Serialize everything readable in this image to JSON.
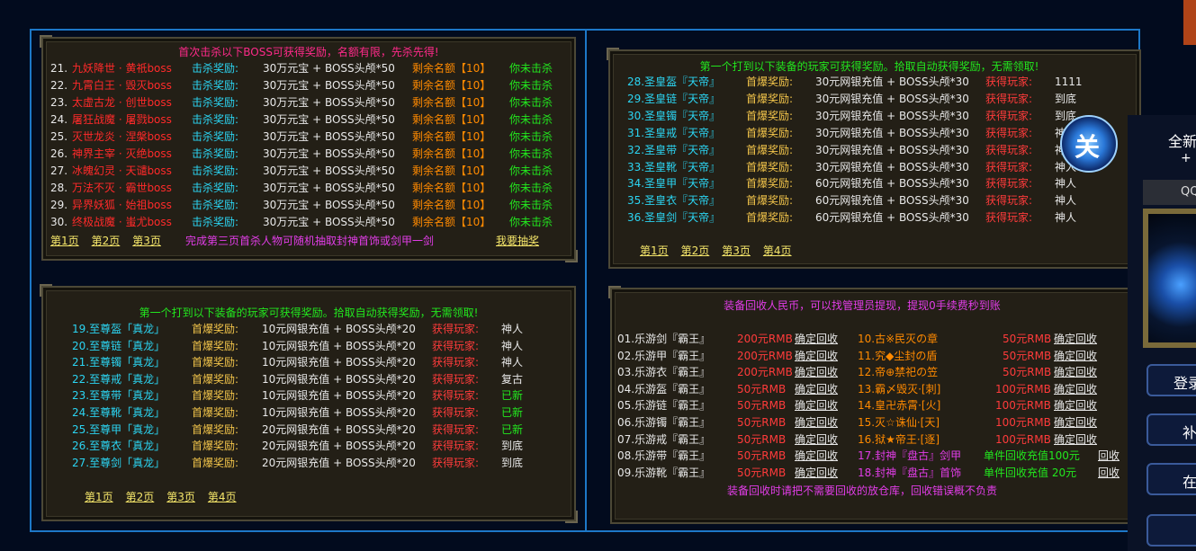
{
  "p1": {
    "title": "首次击杀以下BOSS可获得奖励，名额有限，先杀先得!",
    "rows": [
      {
        "no": "21.",
        "boss": "九妖降世 · 黄祇boss",
        "lbl": "击杀奖励:",
        "rw": "30万元宝 + BOSS头颅*50",
        "rem": "剩余名额【10】",
        "st": "你未击杀"
      },
      {
        "no": "22.",
        "boss": "九霄白王 · 毁灭boss",
        "lbl": "击杀奖励:",
        "rw": "30万元宝 + BOSS头颅*50",
        "rem": "剩余名额【10】",
        "st": "你未击杀"
      },
      {
        "no": "23.",
        "boss": "太虚古龙 · 创世boss",
        "lbl": "击杀奖励:",
        "rw": "30万元宝 + BOSS头颅*50",
        "rem": "剩余名额【10】",
        "st": "你未击杀"
      },
      {
        "no": "24.",
        "boss": "屠狂战魔 · 屠戮boss",
        "lbl": "击杀奖励:",
        "rw": "30万元宝 + BOSS头颅*50",
        "rem": "剩余名额【10】",
        "st": "你未击杀"
      },
      {
        "no": "25.",
        "boss": "灭世龙炎 · 涅槃boss",
        "lbl": "击杀奖励:",
        "rw": "30万元宝 + BOSS头颅*50",
        "rem": "剩余名额【10】",
        "st": "你未击杀"
      },
      {
        "no": "26.",
        "boss": "神界主宰 · 灭绝boss",
        "lbl": "击杀奖励:",
        "rw": "30万元宝 + BOSS头颅*50",
        "rem": "剩余名额【10】",
        "st": "你未击杀"
      },
      {
        "no": "27.",
        "boss": "冰魄幻灵 · 天谴boss",
        "lbl": "击杀奖励:",
        "rw": "30万元宝 + BOSS头颅*50",
        "rem": "剩余名额【10】",
        "st": "你未击杀"
      },
      {
        "no": "28.",
        "boss": "万法不灭 · 霸世boss",
        "lbl": "击杀奖励:",
        "rw": "30万元宝 + BOSS头颅*50",
        "rem": "剩余名额【10】",
        "st": "你未击杀"
      },
      {
        "no": "29.",
        "boss": "异界妖狐 · 始祖boss",
        "lbl": "击杀奖励:",
        "rw": "30万元宝 + BOSS头颅*50",
        "rem": "剩余名额【10】",
        "st": "你未击杀"
      },
      {
        "no": "30.",
        "boss": "终极战魔 · 蚩尤boss",
        "lbl": "击杀奖励:",
        "rw": "30万元宝 + BOSS头颅*50",
        "rem": "剩余名额【10】",
        "st": "你未击杀"
      }
    ],
    "pages": [
      "第1页",
      "第2页",
      "第3页"
    ],
    "note": "完成第三页首杀人物可随机抽取封神首饰或剑甲一剑",
    "draw": "我要抽奖"
  },
  "p2": {
    "title": "第一个打到以下装备的玩家可获得奖励。拾取自动获得奖励，无需领取!",
    "rows": [
      {
        "item": "19.至尊盔「真龙」",
        "lbl": "首爆奖励:",
        "rw": "10元网银充值 + BOSS头颅*20",
        "gp": "获得玩家:",
        "pl": "神人",
        "plc": "white"
      },
      {
        "item": "20.至尊链「真龙」",
        "lbl": "首爆奖励:",
        "rw": "10元网银充值 + BOSS头颅*20",
        "gp": "获得玩家:",
        "pl": "神人",
        "plc": "white"
      },
      {
        "item": "21.至尊镯「真龙」",
        "lbl": "首爆奖励:",
        "rw": "10元网银充值 + BOSS头颅*20",
        "gp": "获得玩家:",
        "pl": "神人",
        "plc": "white"
      },
      {
        "item": "22.至尊戒「真龙」",
        "lbl": "首爆奖励:",
        "rw": "10元网银充值 + BOSS头颅*20",
        "gp": "获得玩家:",
        "pl": "复古",
        "plc": "white"
      },
      {
        "item": "23.至尊带「真龙」",
        "lbl": "首爆奖励:",
        "rw": "10元网银充值 + BOSS头颅*20",
        "gp": "获得玩家:",
        "pl": "已新",
        "plc": "green"
      },
      {
        "item": "24.至尊靴「真龙」",
        "lbl": "首爆奖励:",
        "rw": "10元网银充值 + BOSS头颅*20",
        "gp": "获得玩家:",
        "pl": "已新",
        "plc": "green"
      },
      {
        "item": "25.至尊甲「真龙」",
        "lbl": "首爆奖励:",
        "rw": "20元网银充值 + BOSS头颅*20",
        "gp": "获得玩家:",
        "pl": "已新",
        "plc": "green"
      },
      {
        "item": "26.至尊衣「真龙」",
        "lbl": "首爆奖励:",
        "rw": "20元网银充值 + BOSS头颅*20",
        "gp": "获得玩家:",
        "pl": "到底",
        "plc": "white"
      },
      {
        "item": "27.至尊剑「真龙」",
        "lbl": "首爆奖励:",
        "rw": "20元网银充值 + BOSS头颅*20",
        "gp": "获得玩家:",
        "pl": "到底",
        "plc": "white"
      }
    ],
    "pages": [
      "第1页",
      "第2页",
      "第3页",
      "第4页"
    ]
  },
  "p3": {
    "title": "第一个打到以下装备的玩家可获得奖励。拾取自动获得奖励，无需领取!",
    "rows": [
      {
        "item": "28.圣皇盔『天帝』",
        "lbl": "首爆奖励:",
        "rw": "30元网银充值 + BOSS头颅*30",
        "gp": "获得玩家:",
        "pl": "1111"
      },
      {
        "item": "29.圣皇链『天帝』",
        "lbl": "首爆奖励:",
        "rw": "30元网银充值 + BOSS头颅*30",
        "gp": "获得玩家:",
        "pl": "到底"
      },
      {
        "item": "30.圣皇镯『天帝』",
        "lbl": "首爆奖励:",
        "rw": "30元网银充值 + BOSS头颅*30",
        "gp": "获得玩家:",
        "pl": "到底"
      },
      {
        "item": "31.圣皇戒『天帝』",
        "lbl": "首爆奖励:",
        "rw": "30元网银充值 + BOSS头颅*30",
        "gp": "获得玩家:",
        "pl": "神"
      },
      {
        "item": "32.圣皇带『天帝』",
        "lbl": "首爆奖励:",
        "rw": "30元网银充值 + BOSS头颅*30",
        "gp": "获得玩家:",
        "pl": "神人"
      },
      {
        "item": "33.圣皇靴『天帝』",
        "lbl": "首爆奖励:",
        "rw": "30元网银充值 + BOSS头颅*30",
        "gp": "获得玩家:",
        "pl": "神人"
      },
      {
        "item": "34.圣皇甲『天帝』",
        "lbl": "首爆奖励:",
        "rw": "60元网银充值 + BOSS头颅*30",
        "gp": "获得玩家:",
        "pl": "神人"
      },
      {
        "item": "35.圣皇衣『天帝』",
        "lbl": "首爆奖励:",
        "rw": "60元网银充值 + BOSS头颅*30",
        "gp": "获得玩家:",
        "pl": "神人"
      },
      {
        "item": "36.圣皇剑『天帝』",
        "lbl": "首爆奖励:",
        "rw": "60元网银充值 + BOSS头颅*30",
        "gp": "获得玩家:",
        "pl": "神人"
      }
    ],
    "pages": [
      "第1页",
      "第2页",
      "第3页",
      "第4页"
    ]
  },
  "p4": {
    "title": "装备回收人民币，可以找管理员提现，提现0手续费秒到账",
    "left": [
      {
        "item": "01.乐游剑『霸王』",
        "price": "200元RMB",
        "btn": "确定回收"
      },
      {
        "item": "02.乐游甲『霸王』",
        "price": "200元RMB",
        "btn": "确定回收"
      },
      {
        "item": "03.乐游衣『霸王』",
        "price": "200元RMB",
        "btn": "确定回收"
      },
      {
        "item": "04.乐游盔『霸王』",
        "price": "50元RMB",
        "btn": "确定回收"
      },
      {
        "item": "05.乐游链『霸王』",
        "price": "50元RMB",
        "btn": "确定回收"
      },
      {
        "item": "06.乐游镯『霸王』",
        "price": "50元RMB",
        "btn": "确定回收"
      },
      {
        "item": "07.乐游戒『霸王』",
        "price": "50元RMB",
        "btn": "确定回收"
      },
      {
        "item": "08.乐游带『霸王』",
        "price": "50元RMB",
        "btn": "确定回收"
      },
      {
        "item": "09.乐游靴『霸王』",
        "price": "50元RMB",
        "btn": "确定回收"
      }
    ],
    "right": [
      {
        "item": "10.古※民灭の章",
        "price": "50元RMB",
        "btn": "确定回收"
      },
      {
        "item": "11.究◆尘封の盾",
        "price": "50元RMB",
        "btn": "确定回收"
      },
      {
        "item": "12.帝⊕禁祀の笠",
        "price": "50元RMB",
        "btn": "确定回收"
      },
      {
        "item": "13.霸〆毁灭·[刺]",
        "price": "100元RMB",
        "btn": "确定回收"
      },
      {
        "item": "14.皇卍赤霄·[火]",
        "price": "100元RMB",
        "btn": "确定回收"
      },
      {
        "item": "15.灭☆诛仙·[天]",
        "price": "100元RMB",
        "btn": "确定回收"
      },
      {
        "item": "16.狱★帝王·[逐]",
        "price": "100元RMB",
        "btn": "确定回收"
      }
    ],
    "special": [
      {
        "item": "17.封神『盘古』剑甲",
        "price": "单件回收充值100元",
        "btn": "回收"
      },
      {
        "item": "18.封神『盘古』首饰",
        "price": "单件回收充值 20元",
        "btn": "回收"
      }
    ],
    "footer": "装备回收时请把不需要回收的放仓库，回收错误概不负责"
  },
  "side": {
    "close": "关",
    "head": "全新",
    "sub": "+",
    "qq": "QQ",
    "buttons": [
      "登录",
      "补",
      "在",
      ""
    ]
  }
}
